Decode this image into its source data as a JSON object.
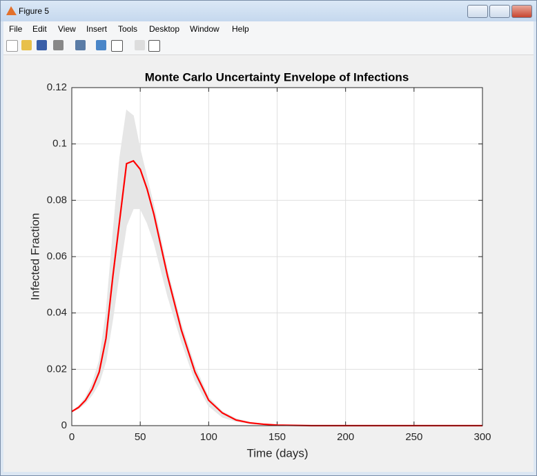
{
  "window": {
    "title": "Figure 5",
    "menu": [
      "File",
      "Edit",
      "View",
      "Insert",
      "Tools",
      "Desktop",
      "Window",
      "Help"
    ]
  },
  "chart_data": {
    "type": "line",
    "title": "Monte Carlo Uncertainty Envelope of Infections",
    "xlabel": "Time (days)",
    "ylabel": "Infected Fraction",
    "x": [
      0,
      5,
      10,
      15,
      20,
      25,
      30,
      35,
      40,
      45,
      50,
      55,
      60,
      70,
      80,
      90,
      100,
      110,
      120,
      130,
      140,
      150,
      175,
      200,
      250,
      300
    ],
    "series": [
      {
        "color": "#e6e6e6",
        "values": [
          0.005,
          0.006,
          0.008,
          0.011,
          0.015,
          0.023,
          0.038,
          0.055,
          0.071,
          0.077,
          0.077,
          0.072,
          0.065,
          0.046,
          0.03,
          0.016,
          0.007,
          0.003,
          0.0015,
          0.0007,
          0.0003,
          0.0001,
          0,
          0,
          0,
          0
        ]
      },
      {
        "color": "#e6e6e6",
        "values": [
          0.005,
          0.007,
          0.01,
          0.015,
          0.023,
          0.04,
          0.068,
          0.095,
          0.112,
          0.11,
          0.098,
          0.088,
          0.078,
          0.055,
          0.036,
          0.021,
          0.01,
          0.005,
          0.0025,
          0.0012,
          0.0006,
          0.0003,
          0,
          0,
          0,
          0
        ]
      },
      {
        "color": "#ff0000",
        "values": [
          0.005,
          0.0065,
          0.009,
          0.013,
          0.019,
          0.031,
          0.053,
          0.073,
          0.093,
          0.094,
          0.091,
          0.084,
          0.075,
          0.053,
          0.034,
          0.019,
          0.009,
          0.0045,
          0.002,
          0.001,
          0.0005,
          0.0002,
          0,
          0,
          0,
          0
        ]
      }
    ],
    "xlim": [
      0,
      300
    ],
    "xticks": [
      0,
      50,
      100,
      150,
      200,
      250,
      300
    ],
    "ylim": [
      0,
      0.12
    ],
    "yticks": [
      0,
      0.02,
      0.04,
      0.06,
      0.08,
      0.1,
      0.12
    ],
    "grid": true
  }
}
